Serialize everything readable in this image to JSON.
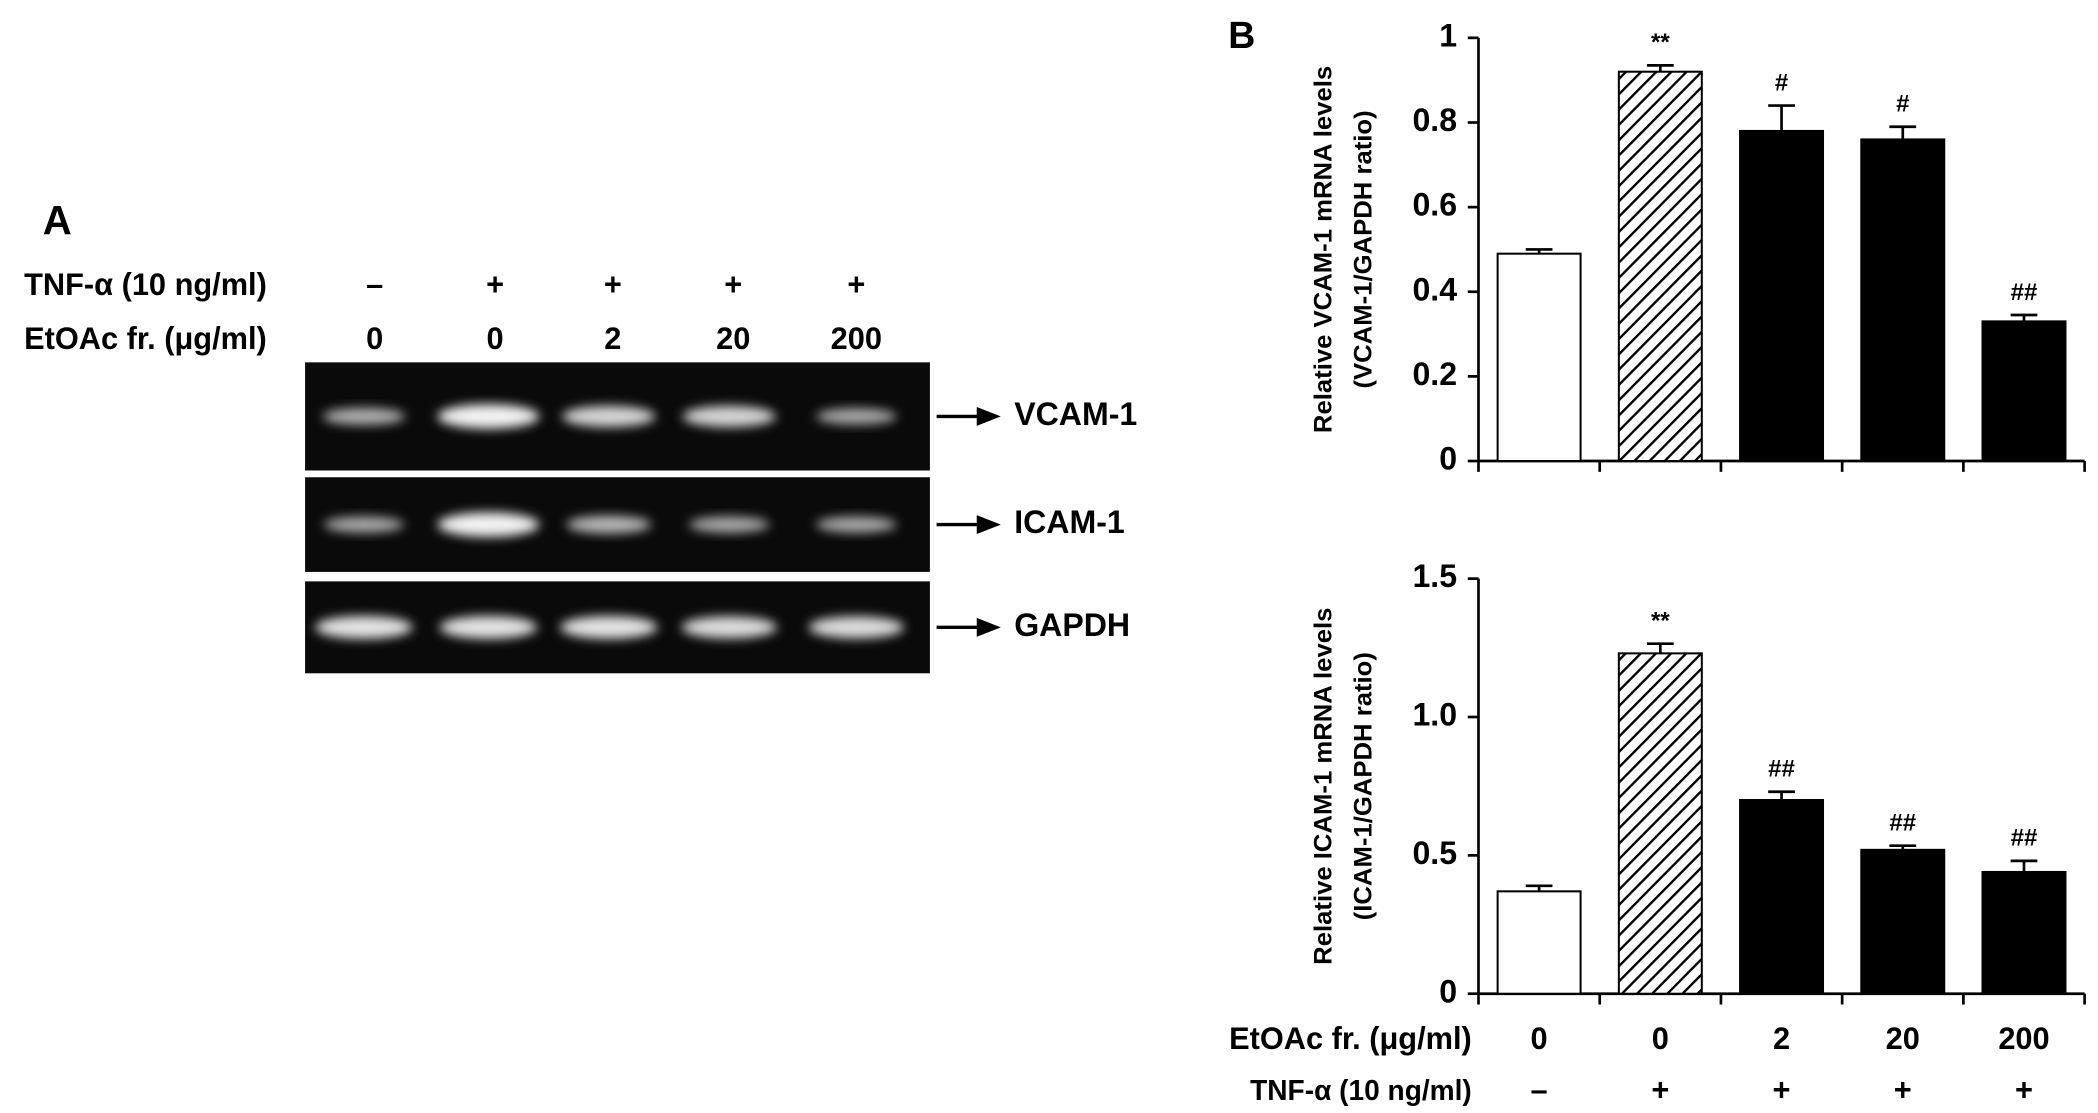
{
  "panel_a": {
    "label": "A",
    "rows": [
      {
        "label": "TNF-α (10 ng/ml)",
        "values": [
          "–",
          "+",
          "+",
          "+",
          "+"
        ]
      },
      {
        "label": "EtOAc fr. (μg/ml)",
        "values": [
          "0",
          "0",
          "2",
          "20",
          "200"
        ]
      }
    ],
    "bands": [
      "VCAM-1",
      "ICAM-1",
      "GAPDH"
    ]
  },
  "panel_b": {
    "label": "B"
  },
  "chart_data": [
    {
      "type": "bar",
      "ylabel": [
        "Relative VCAM-1 mRNA levels",
        "(VCAM-1/GAPDH ratio)"
      ],
      "categories": [
        null,
        null,
        null,
        null,
        null
      ],
      "values": [
        0.49,
        0.92,
        0.78,
        0.76,
        0.33
      ],
      "errors": [
        0.01,
        0.015,
        0.06,
        0.03,
        0.015
      ],
      "annotations": [
        null,
        "**",
        "#",
        "#",
        "##"
      ],
      "fills": [
        "#ffffff",
        "hatched",
        "#000000",
        "#000000",
        "#000000"
      ],
      "ylim": [
        0,
        1
      ],
      "yticks": [
        0,
        0.2,
        0.4,
        0.6,
        0.8,
        1
      ]
    },
    {
      "type": "bar",
      "ylabel": [
        "Relative ICAM-1 mRNA levels",
        "(ICAM-1/GAPDH ratio)"
      ],
      "category_label": "EtOAc fr. (μg/ml)",
      "categories": [
        "0",
        "0",
        "2",
        "20",
        "200"
      ],
      "category_rows": [
        {
          "label": "TNF-α (10 ng/ml)",
          "values": [
            "–",
            "+",
            "+",
            "+",
            "+"
          ]
        }
      ],
      "values": [
        0.37,
        1.23,
        0.7,
        0.52,
        0.44
      ],
      "errors": [
        0.02,
        0.035,
        0.03,
        0.015,
        0.04
      ],
      "annotations": [
        null,
        "**",
        "##",
        "##",
        "##"
      ],
      "fills": [
        "#ffffff",
        "hatched",
        "#000000",
        "#000000",
        "#000000"
      ],
      "ylim": [
        0,
        1.5
      ],
      "yticks": [
        0,
        0.5,
        {
          "value": 1,
          "label": "1.0"
        },
        1.5
      ]
    }
  ]
}
